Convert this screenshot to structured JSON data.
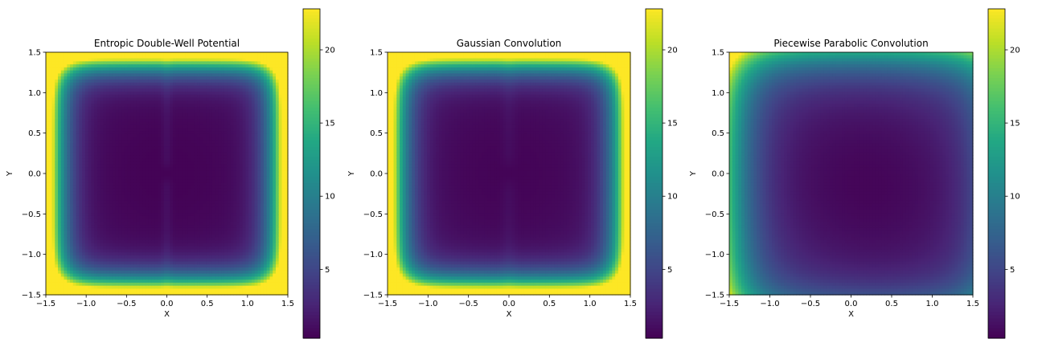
{
  "chart_data": [
    {
      "type": "heatmap",
      "title": "Entropic Double-Well Potential",
      "xlabel": "X",
      "ylabel": "Y",
      "xlim": [
        -1.5,
        1.5
      ],
      "ylim": [
        -1.5,
        1.5
      ],
      "xticks": [
        "−1.5",
        "−1.0",
        "−0.5",
        "0.0",
        "0.5",
        "1.0",
        "1.5"
      ],
      "yticks": [
        "−1.5",
        "−1.0",
        "−0.5",
        "0.0",
        "0.5",
        "1.0",
        "1.5"
      ],
      "colormap": "viridis",
      "colorbar": {
        "range": [
          0.3,
          22.8
        ],
        "ticks": [
          "5",
          "10",
          "15",
          "20"
        ]
      },
      "field": {
        "description_values": "min ~0.5 in two wells near x=±0.5; barrier along x=0; max ~22.8 at corners"
      }
    },
    {
      "type": "heatmap",
      "title": "Gaussian Convolution",
      "xlabel": "X",
      "ylabel": "Y",
      "xlim": [
        -1.5,
        1.5
      ],
      "ylim": [
        -1.5,
        1.5
      ],
      "xticks": [
        "−1.5",
        "−1.0",
        "−0.5",
        "0.0",
        "0.5",
        "1.0",
        "1.5"
      ],
      "yticks": [
        "−1.5",
        "−1.0",
        "−0.5",
        "0.0",
        "0.5",
        "1.0",
        "1.5"
      ],
      "colormap": "viridis",
      "colorbar": {
        "range": [
          0.3,
          22.8
        ],
        "ticks": [
          "5",
          "10",
          "15",
          "20"
        ]
      },
      "field": {
        "description_values": "smoothed double well; max ~22 at corners"
      }
    },
    {
      "type": "heatmap",
      "title": "Piecewise Parabolic Convolution",
      "xlabel": "X",
      "ylabel": "Y",
      "xlim": [
        -1.5,
        1.5
      ],
      "ylim": [
        -1.5,
        1.5
      ],
      "xticks": [
        "−1.5",
        "−1.0",
        "−0.5",
        "0.0",
        "0.5",
        "1.0",
        "1.5"
      ],
      "yticks": [
        "−1.5",
        "−1.0",
        "−0.5",
        "0.0",
        "0.5",
        "1.0",
        "1.5"
      ],
      "colormap": "viridis",
      "colorbar": {
        "range": [
          0.3,
          22.8
        ],
        "ticks": [
          "5",
          "10",
          "15",
          "20"
        ]
      },
      "field": {
        "description_values": "single broad basin; max ~12 at corners"
      }
    }
  ]
}
